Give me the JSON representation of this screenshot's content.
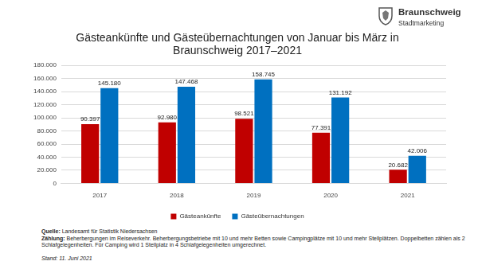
{
  "chart_data": {
    "type": "bar",
    "title": [
      "Gästeankünfte und Gästeübernachtungen von Januar bis März in",
      "Braunschweig 2017–2021"
    ],
    "categories": [
      "2017",
      "2018",
      "2019",
      "2020",
      "2021"
    ],
    "series": [
      {
        "name": "Gästeankünfte",
        "color": "#C00000",
        "values": [
          90397,
          92980,
          98521,
          77391,
          20682
        ],
        "value_labels": [
          "90.397",
          "92.980",
          "98.521",
          "77.391",
          "20.682"
        ]
      },
      {
        "name": "Gästeübernachtungen",
        "color": "#0070C0",
        "values": [
          145180,
          147468,
          158745,
          131192,
          42006
        ],
        "value_labels": [
          "145.180",
          "147.468",
          "158.745",
          "131.192",
          "42.006"
        ]
      }
    ],
    "ylim": [
      0,
      180000
    ],
    "yticks": [
      0,
      {
        "value": 20000,
        "label": "20.000"
      },
      {
        "value": 40000,
        "label": "40.000"
      },
      {
        "value": 60000,
        "label": "60.000"
      },
      {
        "value": 80000,
        "label": "80.000"
      },
      {
        "value": 100000,
        "label": "100.000"
      },
      {
        "value": 120000,
        "label": "120.000"
      },
      {
        "value": 140000,
        "label": "140.000"
      },
      {
        "value": 160000,
        "label": "160.000"
      },
      {
        "value": 180000,
        "label": "180.000"
      }
    ],
    "grid": true,
    "legend": "bottom",
    "data_labels": true
  },
  "logo": {
    "name": "Braunschweig",
    "subtitle": "Stadtmarketing"
  },
  "footer": {
    "notes": [
      {
        "label": "Quelle:",
        "text": "Landesamt für Statistik Niedersachsen"
      },
      {
        "label": "Zählung:",
        "text": "Beherbergungen im Reiseverkehr. Beherbergungsbetriebe mit 10 und mehr Betten sowie Campingplätze mit 10 und mehr Stellplätzen. Doppelbetten zählen als 2 Schlafgelegenheiten. Für Camping wird 1 Stellplatz in 4 Schlafgelegenheiten umgerechnet."
      }
    ],
    "stand": "Stand: 11. Juni 2021"
  }
}
